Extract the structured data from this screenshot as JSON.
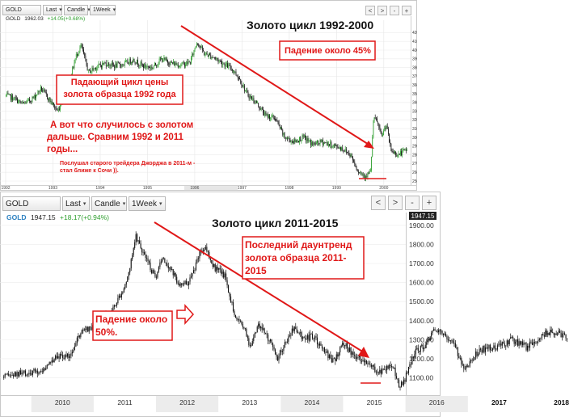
{
  "top": {
    "toolbar": {
      "symbol": "GOLD",
      "price_type": "Last",
      "chart_type": "Candle",
      "interval": "1Week",
      "nav_left": "<",
      "nav_right": ">",
      "nav_minus": "-",
      "nav_plus": "+"
    },
    "quote": {
      "symbol": "GOLD",
      "last": "1962.03",
      "change": "+14.05(+0.68%)"
    },
    "title": "Золото цикл 1992-2000",
    "annotations": {
      "drop": "Падение около 45%",
      "cycle": "Падающий цикл цены золота образца 1992 года",
      "what": "А вот что случилось с золотом дальше. Сравним 1992 и 2011 годы...",
      "advice": "Послушал старого трейдера Джорджа в 2011-м - стал ближе к Сочи ))."
    }
  },
  "bottom": {
    "toolbar": {
      "symbol": "GOLD",
      "price_type": "Last",
      "chart_type": "Candle",
      "interval": "1Week",
      "nav_left": "<",
      "nav_right": ">",
      "nav_minus": "-",
      "nav_plus": "+"
    },
    "quote": {
      "symbol": "GOLD",
      "last": "1947.15",
      "change": "+18.17(+0.94%)"
    },
    "price_tag": "1947.15",
    "title": "Золото цикл 2011-2015",
    "annotations": {
      "drop": "Падение около 50%.",
      "last_downtrend": "Последний даунтренд золота образца 2011-2015"
    }
  },
  "colors": {
    "bull": "#2e9e2e",
    "bear": "#111111",
    "accent_red": "#e01818",
    "box_border": "#e01818",
    "price_tag_bg": "#222222"
  },
  "chart_data": [
    {
      "type": "candlestick",
      "title": "Золото цикл 1992-2000",
      "x_ticks": [
        "1992",
        "1993",
        "1994",
        "1995",
        "1996",
        "1997",
        "1998",
        "1999",
        "2000"
      ],
      "y_ticks": [
        250,
        260,
        270,
        280,
        290,
        300,
        310,
        320,
        330,
        340,
        350,
        360,
        370,
        380,
        390,
        400,
        410,
        420
      ],
      "ylim": [
        250,
        425
      ],
      "series": [
        {
          "values": [
            [
              1992.0,
              348
            ],
            [
              1992.2,
              344
            ],
            [
              1992.35,
              338
            ],
            [
              1992.5,
              342
            ],
            [
              1992.6,
              346
            ],
            [
              1992.75,
              356
            ],
            [
              1992.9,
              345
            ],
            [
              1993.1,
              330
            ],
            [
              1993.3,
              355
            ],
            [
              1993.5,
              395
            ],
            [
              1993.6,
              405
            ],
            [
              1993.75,
              375
            ],
            [
              1993.9,
              380
            ],
            [
              1994.1,
              385
            ],
            [
              1994.3,
              382
            ],
            [
              1994.5,
              384
            ],
            [
              1994.7,
              389
            ],
            [
              1994.9,
              382
            ],
            [
              1995.1,
              380
            ],
            [
              1995.3,
              390
            ],
            [
              1995.5,
              385
            ],
            [
              1995.7,
              383
            ],
            [
              1995.9,
              386
            ],
            [
              1996.05,
              410
            ],
            [
              1996.2,
              396
            ],
            [
              1996.4,
              392
            ],
            [
              1996.6,
              385
            ],
            [
              1996.8,
              378
            ],
            [
              1996.95,
              367
            ],
            [
              1997.1,
              350
            ],
            [
              1997.3,
              340
            ],
            [
              1997.5,
              325
            ],
            [
              1997.7,
              322
            ],
            [
              1997.9,
              300
            ],
            [
              1998.1,
              295
            ],
            [
              1998.3,
              300
            ],
            [
              1998.5,
              292
            ],
            [
              1998.7,
              295
            ],
            [
              1998.9,
              291
            ],
            [
              1999.1,
              288
            ],
            [
              1999.3,
              280
            ],
            [
              1999.45,
              262
            ],
            [
              1999.6,
              256
            ],
            [
              1999.72,
              260
            ],
            [
              1999.78,
              320
            ],
            [
              1999.85,
              320
            ],
            [
              1999.95,
              300
            ],
            [
              2000.05,
              315
            ],
            [
              2000.15,
              285
            ],
            [
              2000.3,
              280
            ],
            [
              2000.45,
              285
            ]
          ]
        }
      ]
    },
    {
      "type": "candlestick",
      "title": "Золото цикл 2011-2015",
      "x_ticks": [
        "2010",
        "2011",
        "2012",
        "2013",
        "2014",
        "2015",
        "2016",
        "2017",
        "2018"
      ],
      "y_ticks": [
        1100,
        1200,
        1300,
        1400,
        1500,
        1600,
        1700,
        1800,
        1900
      ],
      "ylim": [
        1060,
        1950
      ],
      "series": [
        {
          "values": [
            [
              2009.55,
              1100
            ],
            [
              2009.8,
              1120
            ],
            [
              2010.0,
              1125
            ],
            [
              2010.2,
              1140
            ],
            [
              2010.4,
              1220
            ],
            [
              2010.6,
              1210
            ],
            [
              2010.8,
              1340
            ],
            [
              2011.0,
              1360
            ],
            [
              2011.2,
              1420
            ],
            [
              2011.4,
              1520
            ],
            [
              2011.55,
              1620
            ],
            [
              2011.67,
              1850
            ],
            [
              2011.72,
              1810
            ],
            [
              2011.85,
              1720
            ],
            [
              2012.0,
              1610
            ],
            [
              2012.1,
              1740
            ],
            [
              2012.25,
              1660
            ],
            [
              2012.4,
              1580
            ],
            [
              2012.55,
              1610
            ],
            [
              2012.7,
              1760
            ],
            [
              2012.8,
              1780
            ],
            [
              2012.95,
              1670
            ],
            [
              2013.1,
              1640
            ],
            [
              2013.28,
              1410
            ],
            [
              2013.4,
              1380
            ],
            [
              2013.5,
              1260
            ],
            [
              2013.65,
              1380
            ],
            [
              2013.8,
              1310
            ],
            [
              2013.95,
              1210
            ],
            [
              2014.1,
              1300
            ],
            [
              2014.2,
              1360
            ],
            [
              2014.4,
              1300
            ],
            [
              2014.5,
              1320
            ],
            [
              2014.7,
              1240
            ],
            [
              2014.85,
              1180
            ],
            [
              2015.0,
              1290
            ],
            [
              2015.2,
              1200
            ],
            [
              2015.4,
              1190
            ],
            [
              2015.55,
              1130
            ],
            [
              2015.7,
              1150
            ],
            [
              2015.8,
              1160
            ],
            [
              2015.9,
              1060
            ],
            [
              2016.0,
              1100
            ],
            [
              2016.15,
              1240
            ],
            [
              2016.3,
              1270
            ],
            [
              2016.5,
              1360
            ],
            [
              2016.6,
              1340
            ],
            [
              2016.8,
              1260
            ],
            [
              2016.95,
              1150
            ],
            [
              2017.2,
              1250
            ],
            [
              2017.45,
              1260
            ],
            [
              2017.7,
              1300
            ],
            [
              2017.95,
              1260
            ],
            [
              2018.2,
              1330
            ],
            [
              2018.45,
              1340
            ],
            [
              2018.55,
              1320
            ]
          ]
        }
      ]
    }
  ]
}
